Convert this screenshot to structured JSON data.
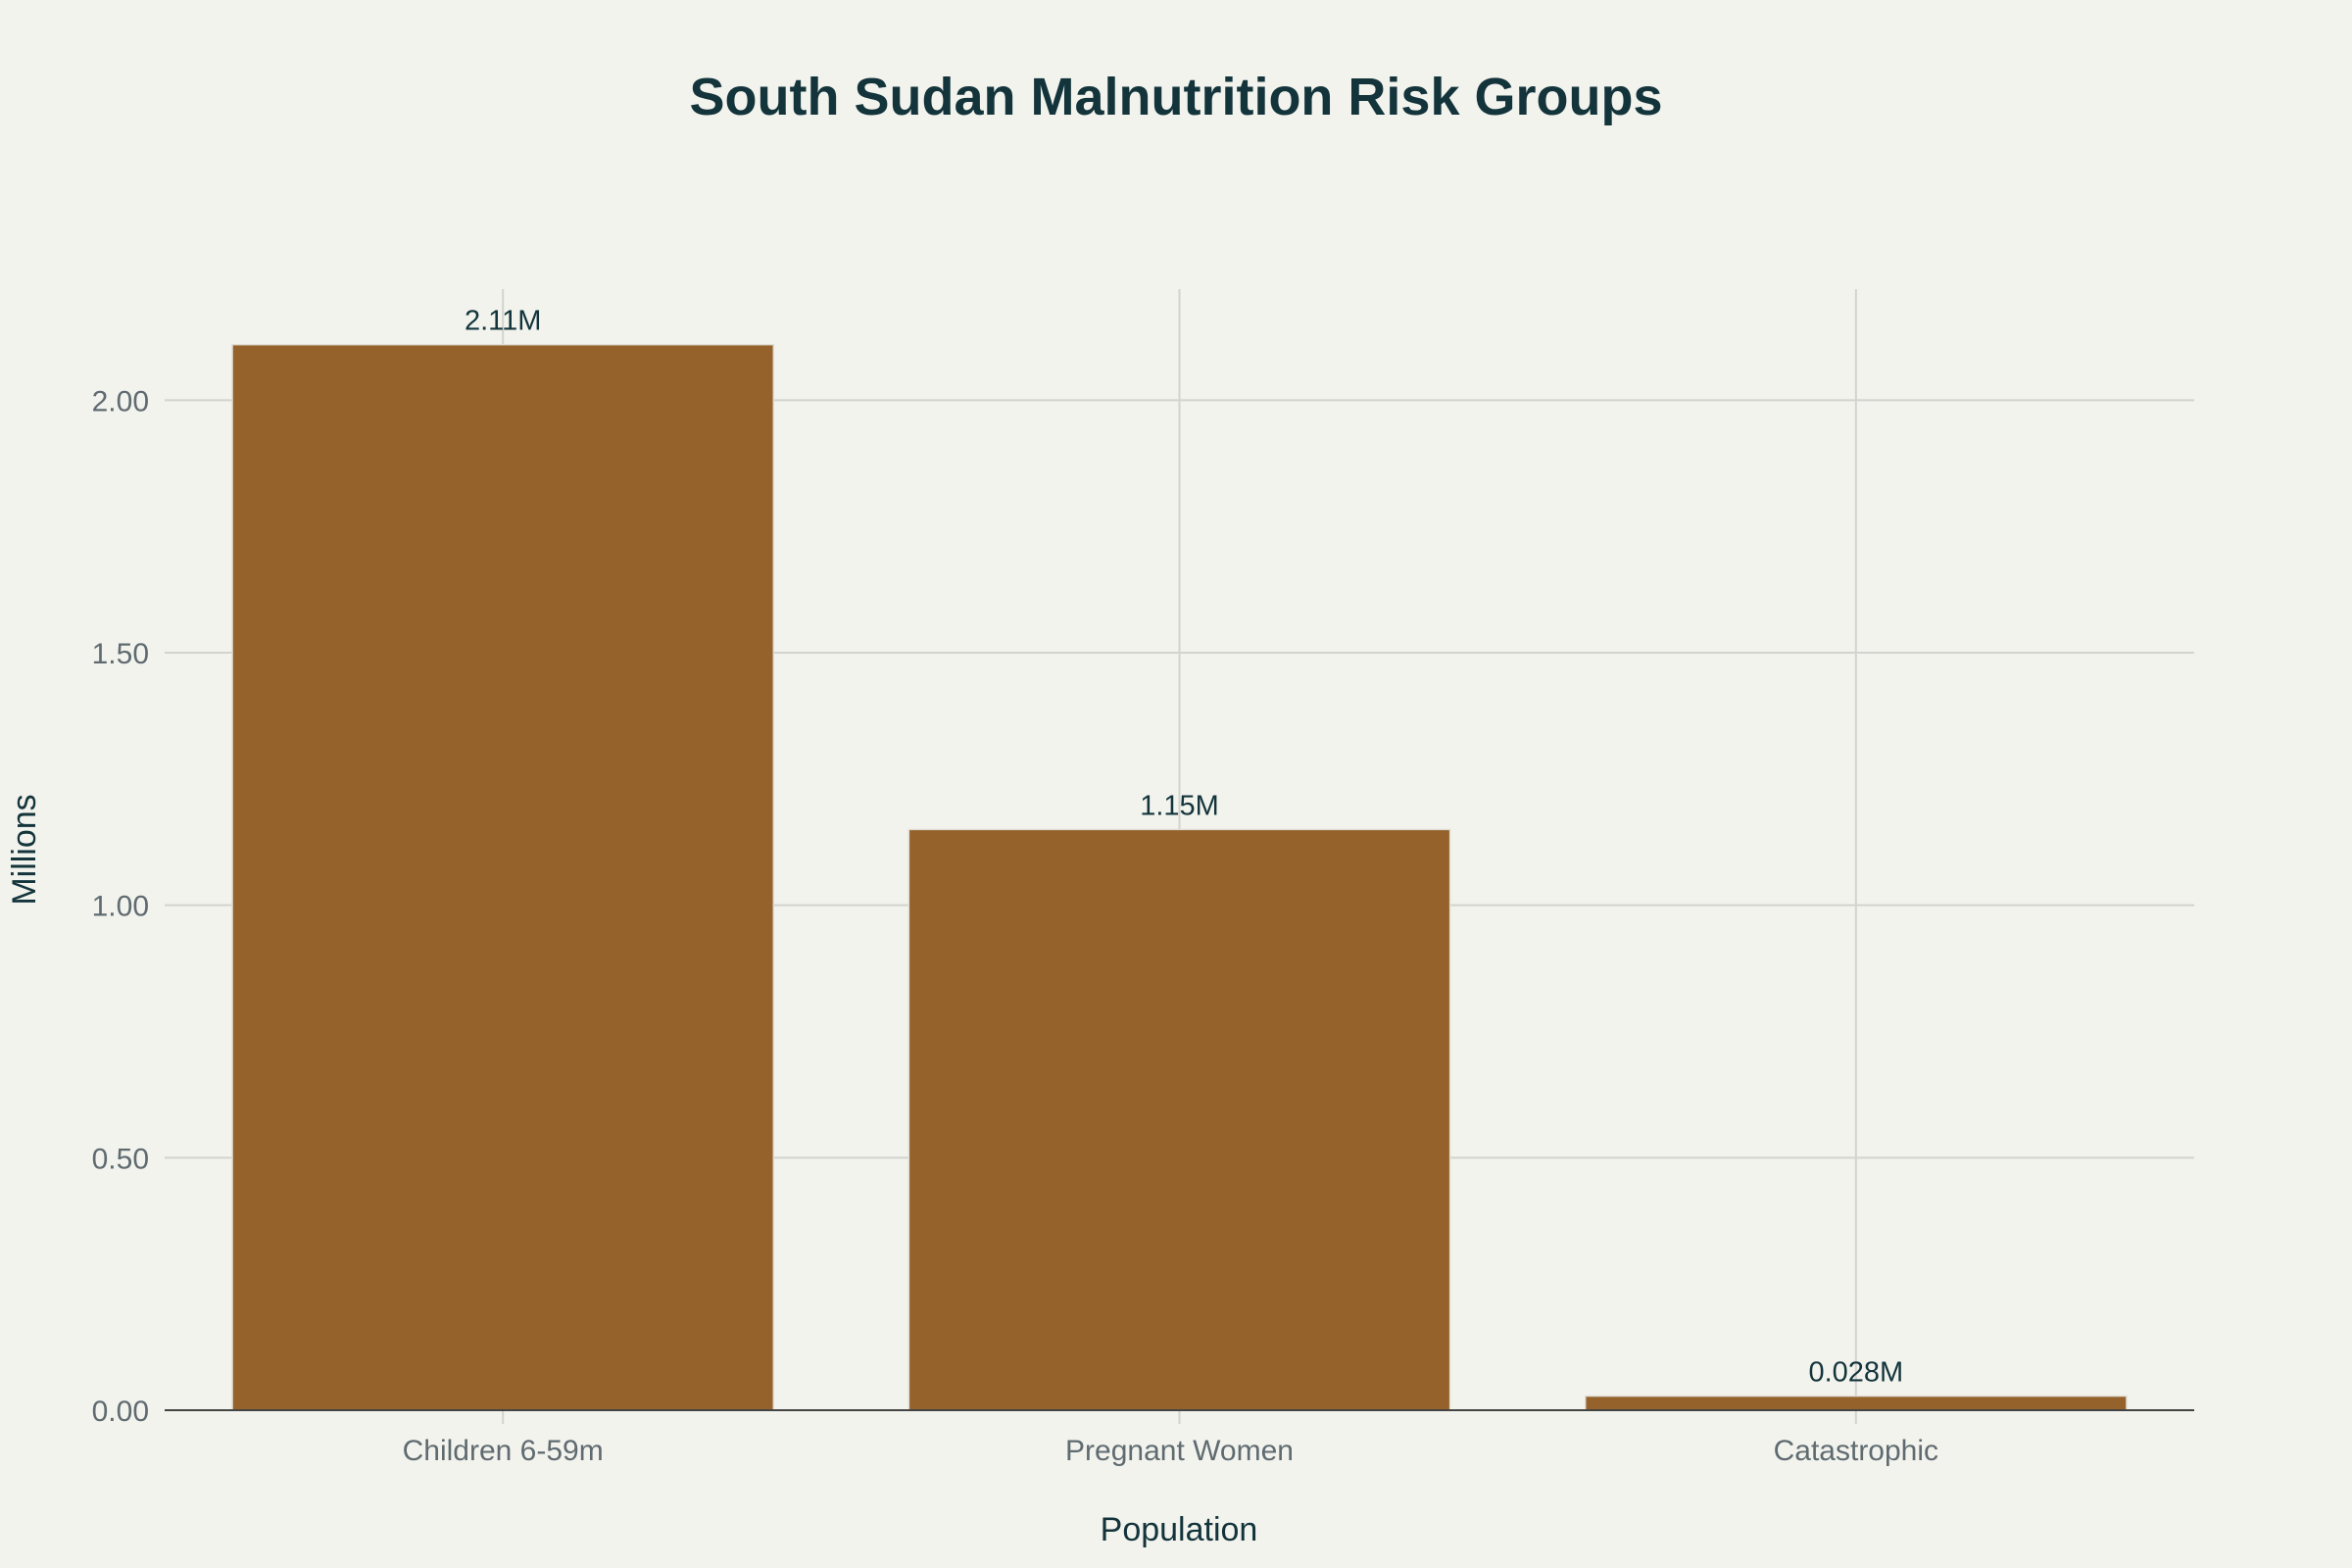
{
  "chart_data": {
    "type": "bar",
    "title": "South Sudan Malnutrition Risk Groups",
    "xlabel": "Population",
    "ylabel": "Millions",
    "categories": [
      "Children 6-59m",
      "Pregnant Women",
      "Catastrophic"
    ],
    "values": [
      2.11,
      1.15,
      0.028
    ],
    "data_labels": [
      "2.11M",
      "1.15M",
      "0.028M"
    ],
    "ylim": [
      0,
      2.22
    ],
    "yticks": [
      0,
      0.5,
      1.0,
      1.5,
      2.0
    ],
    "ytick_labels": [
      "0.00",
      "0.50",
      "1.00",
      "1.50",
      "2.00"
    ],
    "grid": true,
    "bar_color": "#94622a",
    "background": "#f3f3ee"
  }
}
